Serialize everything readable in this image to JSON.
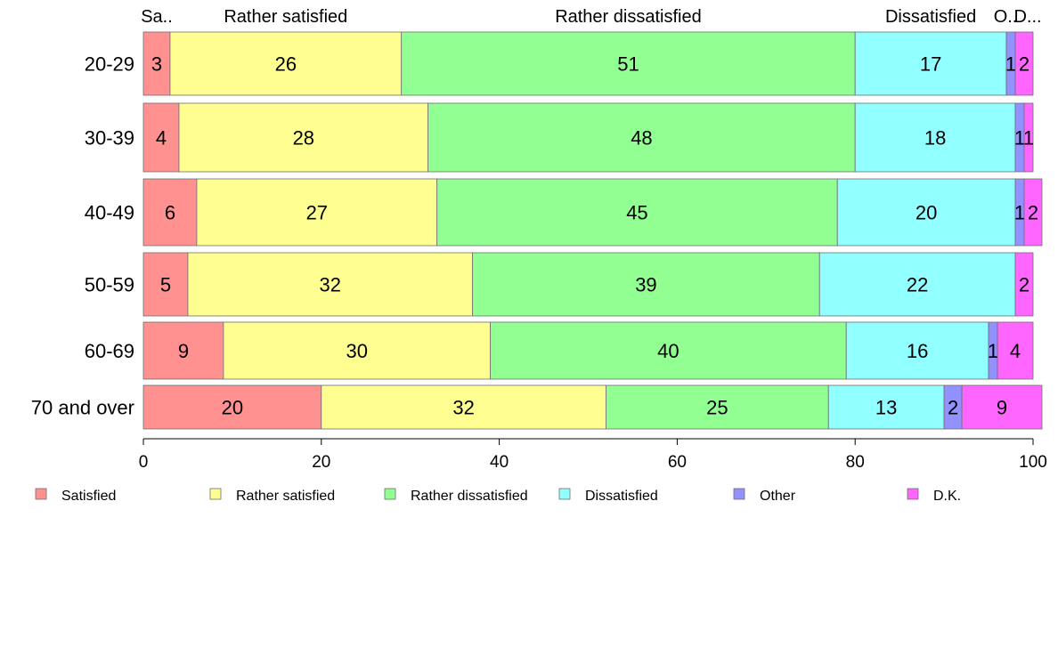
{
  "chart_data": {
    "type": "bar",
    "orientation": "horizontal",
    "stacked": true,
    "categories": [
      "20-29",
      "30-39",
      "40-49",
      "50-59",
      "60-69",
      "70 and over"
    ],
    "series": [
      {
        "name": "Satisfied",
        "color": "#ff9191",
        "values": [
          3,
          4,
          6,
          5,
          9,
          20
        ]
      },
      {
        "name": "Rather satisfied",
        "color": "#ffff91",
        "values": [
          26,
          28,
          27,
          32,
          30,
          32
        ]
      },
      {
        "name": "Rather dissatisfied",
        "color": "#91ff91",
        "values": [
          51,
          48,
          45,
          39,
          40,
          25
        ]
      },
      {
        "name": "Dissatisfied",
        "color": "#91ffff",
        "values": [
          17,
          18,
          20,
          22,
          16,
          13
        ]
      },
      {
        "name": "Other",
        "color": "#9191ff",
        "values": [
          1,
          1,
          1,
          0,
          1,
          2
        ]
      },
      {
        "name": "D.K.",
        "color": "#ff66ff",
        "values": [
          2,
          1,
          2,
          2,
          4,
          9
        ]
      }
    ],
    "segment_labels": [
      [
        "3",
        "26",
        "51",
        "17",
        "1",
        "2"
      ],
      [
        "4",
        "28",
        "48",
        "18",
        "1",
        "1"
      ],
      [
        "6",
        "27",
        "45",
        "20",
        "1",
        "2"
      ],
      [
        "5",
        "32",
        "39",
        "22",
        "",
        "2"
      ],
      [
        "9",
        "30",
        "40",
        "16",
        "1",
        "4"
      ],
      [
        "20",
        "32",
        "25",
        "13",
        "2",
        "9"
      ]
    ],
    "top_labels": [
      "Sa..",
      "Rather satisfied",
      "Rather dissatisfied",
      "Dissatisfied",
      "O..",
      "D..."
    ],
    "xlim": [
      0,
      100
    ],
    "xticks": [
      "0",
      "20",
      "40",
      "60",
      "80",
      "100"
    ],
    "legend_position": "bottom",
    "grid": false
  }
}
